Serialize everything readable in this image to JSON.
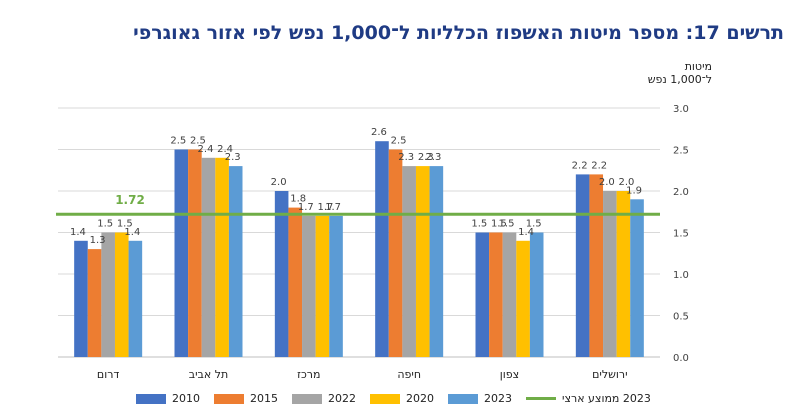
{
  "chart_data": {
    "type": "bar",
    "title": "תרשים 17: מספר מיטות האשפוז הכלליות ל־1,000 נפש לפי אזור גאוגרפי",
    "ylabel": "מיטות ל־1,000 נפש",
    "xlabel": "",
    "ylim": [
      0,
      3.0
    ],
    "yticks": [
      "0.0",
      "0.5",
      "1.0",
      "1.5",
      "2.0",
      "2.5",
      "3.0"
    ],
    "categories": [
      "דרום",
      "תל אביב",
      "מרכז",
      "חיפה",
      "צפון",
      "ירושלים"
    ],
    "series": [
      {
        "name": "2010",
        "color": "#4472c4",
        "values": [
          1.4,
          2.5,
          2.0,
          2.6,
          1.5,
          2.2
        ]
      },
      {
        "name": "2015",
        "color": "#ed7d31",
        "values": [
          1.3,
          2.5,
          1.8,
          2.5,
          1.5,
          2.2
        ]
      },
      {
        "name": "2022",
        "color": "#a5a5a5",
        "values": [
          1.5,
          2.4,
          1.7,
          2.3,
          1.5,
          2.0
        ]
      },
      {
        "name": "2020",
        "color": "#ffc000",
        "values": [
          1.5,
          2.4,
          1.7,
          2.3,
          1.4,
          2.0
        ]
      },
      {
        "name": "2023",
        "color": "#5b9bd5",
        "values": [
          1.4,
          2.3,
          1.7,
          2.3,
          1.5,
          1.9
        ]
      }
    ],
    "average": {
      "name": "2023 ממוצע ארצי",
      "value": 1.72,
      "label": "1.72",
      "color": "#70ad47"
    },
    "grid": true,
    "legend_position": "bottom"
  }
}
